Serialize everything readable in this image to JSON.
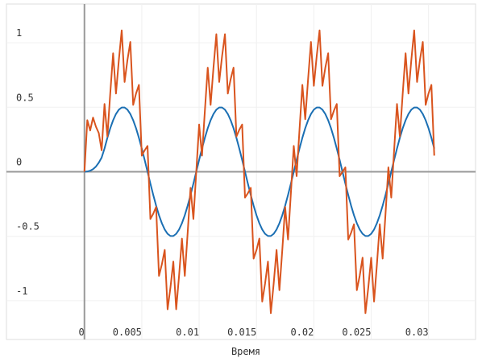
{
  "chart_data": {
    "type": "line",
    "x_label": "Время",
    "x": [
      0,
      0.00025,
      0.0005,
      0.00075,
      0.001,
      0.00125,
      0.0015,
      0.00175,
      0.002,
      0.00225,
      0.0025,
      0.00275,
      0.003,
      0.00325,
      0.0035,
      0.00375,
      0.004,
      0.00425,
      0.0045,
      0.00475,
      0.005,
      0.00525,
      0.0055,
      0.00575,
      0.006,
      0.00625,
      0.0065,
      0.00675,
      0.007,
      0.00725,
      0.0075,
      0.00775,
      0.008,
      0.00825,
      0.0085,
      0.00875,
      0.009,
      0.00925,
      0.0095,
      0.00975,
      0.01,
      0.01025,
      0.0105,
      0.01075,
      0.011,
      0.01125,
      0.0115,
      0.01175,
      0.012,
      0.01225,
      0.0125,
      0.01275,
      0.013,
      0.01325,
      0.0135,
      0.01375,
      0.014,
      0.01425,
      0.0145,
      0.01475,
      0.015,
      0.01525,
      0.0155,
      0.01575,
      0.016,
      0.01625,
      0.0165,
      0.01675,
      0.017,
      0.01725,
      0.0175,
      0.01775,
      0.018,
      0.01825,
      0.0185,
      0.01875,
      0.019,
      0.01925,
      0.0195,
      0.01975,
      0.02,
      0.02025,
      0.0205,
      0.02075,
      0.021,
      0.02125,
      0.0215,
      0.02175,
      0.022,
      0.02225,
      0.0225,
      0.02275,
      0.023,
      0.02325,
      0.0235,
      0.02375,
      0.024,
      0.02425,
      0.0245,
      0.02475,
      0.025,
      0.02525,
      0.0255,
      0.02575,
      0.026,
      0.02625,
      0.0265,
      0.02675,
      0.027,
      0.02725,
      0.0275,
      0.02775,
      0.028,
      0.02825,
      0.0285,
      0.02875,
      0.029,
      0.02925,
      0.0295,
      0.02975,
      0.03,
      0.03025,
      0.0305
    ],
    "series": [
      {
        "color": "#1b6fb3",
        "values": [
          0,
          0.002,
          0.008,
          0.02,
          0.04,
          0.07,
          0.11,
          0.18,
          0.263,
          0.337,
          0.399,
          0.448,
          0.481,
          0.498,
          0.498,
          0.481,
          0.448,
          0.399,
          0.337,
          0.263,
          0.18,
          0.092,
          0,
          -0.092,
          -0.18,
          -0.263,
          -0.337,
          -0.399,
          -0.448,
          -0.481,
          -0.498,
          -0.498,
          -0.481,
          -0.448,
          -0.399,
          -0.337,
          -0.263,
          -0.18,
          -0.092,
          0,
          0.092,
          0.18,
          0.263,
          0.337,
          0.399,
          0.448,
          0.481,
          0.498,
          0.498,
          0.481,
          0.448,
          0.399,
          0.337,
          0.263,
          0.18,
          0.092,
          0,
          -0.092,
          -0.18,
          -0.263,
          -0.337,
          -0.399,
          -0.448,
          -0.481,
          -0.498,
          -0.498,
          -0.481,
          -0.448,
          -0.399,
          -0.337,
          -0.263,
          -0.18,
          -0.092,
          0,
          0.092,
          0.18,
          0.263,
          0.337,
          0.399,
          0.448,
          0.481,
          0.498,
          0.498,
          0.481,
          0.448,
          0.399,
          0.337,
          0.263,
          0.18,
          0.092,
          0,
          -0.092,
          -0.18,
          -0.263,
          -0.337,
          -0.399,
          -0.448,
          -0.481,
          -0.498,
          -0.498,
          -0.481,
          -0.448,
          -0.399,
          -0.337,
          -0.263,
          -0.18,
          -0.092,
          0,
          0.092,
          0.18,
          0.263,
          0.337,
          0.399,
          0.448,
          0.481,
          0.498,
          0.498,
          0.481,
          0.448,
          0.399,
          0.337,
          0.263,
          0.18
        ]
      },
      {
        "color": "#d9541e",
        "values": [
          0,
          0.4,
          0.32,
          0.42,
          0.35,
          0.3,
          0.166,
          0.525,
          0.273,
          0.607,
          0.918,
          0.606,
          0.866,
          1.096,
          0.696,
          0.866,
          1.006,
          0.518,
          0.607,
          0.673,
          0.125,
          0.166,
          0.2,
          -0.366,
          -0.325,
          -0.273,
          -0.807,
          -0.718,
          -0.606,
          -1.066,
          -0.896,
          -0.696,
          -1.066,
          -0.806,
          -0.518,
          -0.807,
          -0.473,
          -0.125,
          -0.366,
          0,
          0.366,
          0.125,
          0.473,
          0.807,
          0.518,
          0.806,
          1.066,
          0.696,
          0.896,
          1.066,
          0.606,
          0.718,
          0.807,
          0.273,
          0.325,
          0.366,
          -0.2,
          -0.166,
          -0.125,
          -0.673,
          -0.607,
          -0.518,
          -1.006,
          -0.866,
          -0.696,
          -1.096,
          -0.866,
          -0.606,
          -0.918,
          -0.607,
          -0.273,
          -0.525,
          -0.166,
          0.2,
          -0.034,
          0.325,
          0.673,
          0.407,
          0.718,
          1.006,
          0.666,
          0.896,
          1.096,
          0.666,
          0.806,
          0.918,
          0.407,
          0.473,
          0.525,
          -0.034,
          0,
          0.034,
          -0.525,
          -0.473,
          -0.407,
          -0.918,
          -0.806,
          -0.666,
          -1.096,
          -0.896,
          -0.666,
          -1.006,
          -0.718,
          -0.407,
          -0.673,
          -0.325,
          0.034,
          -0.2,
          0.166,
          0.525,
          0.273,
          0.607,
          0.918,
          0.606,
          0.866,
          1.096,
          0.696,
          0.866,
          1.006,
          0.518,
          0.607,
          0.673,
          0.125
        ]
      }
    ],
    "xlim": [
      -0.0068,
      0.0341
    ],
    "xticks": [
      0,
      0.005,
      0.01,
      0.015,
      0.02,
      0.025,
      0.03
    ],
    "ylim": [
      -1.3,
      1.3
    ],
    "yticks": [
      -1,
      -0.5,
      0,
      0.5,
      1
    ],
    "grid": true
  }
}
